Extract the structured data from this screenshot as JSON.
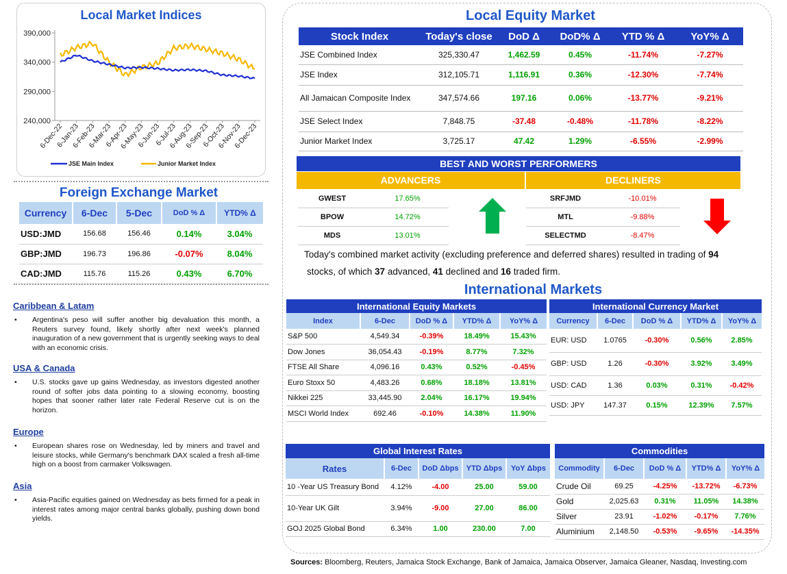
{
  "chart": {
    "title": "Local Market Indices",
    "legend": [
      "JSE Main Index",
      "Junior Market Index"
    ]
  },
  "chart_data": {
    "type": "line",
    "title": "Local Market Indices",
    "ylim": [
      240000,
      390000
    ],
    "yticks": [
      "390,000",
      "340,000",
      "290,000",
      "240,000"
    ],
    "ytick_values": [
      390000,
      340000,
      290000,
      240000
    ],
    "x": [
      "6-Dec-22",
      "6-Jan-23",
      "6-Feb-23",
      "6-Mar-23",
      "6-Apr-23",
      "6-May-23",
      "6-Jun-23",
      "6-Jul-23",
      "6-Aug-23",
      "6-Sep-23",
      "6-Oct-23",
      "6-Nov-23",
      "6-Dec-23"
    ],
    "colors": {
      "JSE Main Index": "#1f2fd0",
      "Junior Market Index": "#f5b800"
    },
    "series": [
      {
        "name": "JSE Main Index",
        "values": [
          340000,
          352000,
          342000,
          336000,
          330000,
          331000,
          329000,
          326000,
          327000,
          325000,
          318000,
          316000,
          312000
        ]
      },
      {
        "name": "Junior Market Index",
        "values": [
          352000,
          365000,
          372000,
          340000,
          318000,
          331000,
          338000,
          364000,
          368000,
          362000,
          355000,
          345000,
          328000
        ]
      }
    ]
  },
  "fx": {
    "title": "Foreign Exchange Market",
    "headers": [
      "Currency",
      "6-Dec",
      "5-Dec",
      "DoD % Δ",
      "YTD% Δ"
    ],
    "rows": [
      {
        "c": "USD:JMD",
        "a": "156.68",
        "b": "156.46",
        "d": "0.14%",
        "y": "3.04%"
      },
      {
        "c": "GBP:JMD",
        "a": "196.73",
        "b": "196.86",
        "d": "-0.07%",
        "y": "8.04%"
      },
      {
        "c": "CAD:JMD",
        "a": "115.76",
        "b": "115.26",
        "d": "0.43%",
        "y": "6.70%"
      }
    ]
  },
  "news": [
    {
      "head": "Caribbean & Latam",
      "body": "Argentina's peso will suffer another big devaluation this month, a Reuters survey found, likely shortly after next week's planned inauguration of a new government that is urgently seeking ways to deal with an economic crisis."
    },
    {
      "head": "USA & Canada",
      "body": "U.S. stocks gave up gains Wednesday, as investors digested another round of softer jobs data pointing to a slowing economy, boosting hopes that sooner rather later rate Federal Reserve cut is on the horizon."
    },
    {
      "head": "Europe",
      "body": "European shares rose on Wednesday, led by miners and travel and leisure stocks, while Germany's benchmark DAX scaled a fresh all-time high on a boost from carmaker Volkswagen."
    },
    {
      "head": "Asia",
      "body": "Asia-Pacific equities gained on Wednesday as bets firmed for a peak in interest rates among major central banks globally, pushing down bond yields."
    }
  ],
  "equity": {
    "title": "Local Equity Market",
    "headers": [
      "Stock Index",
      "Today's close",
      "DoD  Δ",
      "DoD% Δ",
      "YTD % Δ",
      "YoY% Δ"
    ],
    "rows": [
      {
        "n": "JSE Combined Index",
        "c": "325,330.47",
        "d": "1,462.59",
        "dp": "0.45%",
        "y": "-11.74%",
        "yy": "-7.27%"
      },
      {
        "n": "JSE Index",
        "c": "312,105.71",
        "d": "1,116.91",
        "dp": "0.36%",
        "y": "-12.30%",
        "yy": "-7.74%"
      },
      {
        "n": "All Jamaican Composite Index",
        "c": "347,574.66",
        "d": "197.16",
        "dp": "0.06%",
        "y": "-13.77%",
        "yy": "-9.21%"
      },
      {
        "n": "JSE Select Index",
        "c": "7,848.75",
        "d": "-37.48",
        "dp": "-0.48%",
        "y": "-11.78%",
        "yy": "-8.22%"
      },
      {
        "n": "Junior Market Index",
        "c": "3,725.17",
        "d": "47.42",
        "dp": "1.29%",
        "y": "-6.55%",
        "yy": "-2.99%"
      }
    ]
  },
  "performers": {
    "title": "BEST AND WORST PERFORMERS",
    "adv_label": "ADVANCERS",
    "dec_label": "DECLINERS",
    "advancers": [
      {
        "s": "GWEST",
        "v": "17.65%"
      },
      {
        "s": "BPOW",
        "v": "14.72%"
      },
      {
        "s": "MDS",
        "v": "13.01%"
      }
    ],
    "decliners": [
      {
        "s": "SRFJMD",
        "v": "-10.01%"
      },
      {
        "s": "MTL",
        "v": "-9.88%"
      },
      {
        "s": "SELECTMD",
        "v": "-8.47%"
      }
    ]
  },
  "summary": {
    "p1": "Today's combined market activity (excluding preference and deferred shares) resulted in trading of ",
    "n_total": "94",
    "p2": "stocks, of which ",
    "n_adv": "37",
    "p3": " advanced, ",
    "n_dec": "41",
    "p4": " declined and ",
    "n_firm": "16",
    "p5": " traded firm."
  },
  "intl": {
    "title": "International Markets",
    "equity_title": "International Equity Markets",
    "equity_headers": [
      "Index",
      "6-Dec",
      "DoD % Δ",
      "YTD% Δ",
      "YoY% Δ"
    ],
    "equity_rows": [
      {
        "n": "S&P 500",
        "v": "4,549.34",
        "d": "-0.39%",
        "y": "18.49%",
        "yy": "15.43%"
      },
      {
        "n": "Dow Jones",
        "v": "36,054.43",
        "d": "-0.19%",
        "y": "8.77%",
        "yy": "7.32%"
      },
      {
        "n": "FTSE All Share",
        "v": "4,096.16",
        "d": "0.43%",
        "y": "0.52%",
        "yy": "-0.45%"
      },
      {
        "n": "Euro Stoxx 50",
        "v": "4,483.26",
        "d": "0.68%",
        "y": "18.18%",
        "yy": "13.81%"
      },
      {
        "n": "Nikkei 225",
        "v": "33,445.90",
        "d": "2.04%",
        "y": "16.17%",
        "yy": "19.94%"
      },
      {
        "n": "MSCI World Index",
        "v": "692.46",
        "d": "-0.10%",
        "y": "14.38%",
        "yy": "11.90%"
      }
    ],
    "currency_title": "International Currency Market",
    "currency_headers": [
      "Currency",
      "6-Dec",
      "DoD % Δ",
      "YTD% Δ",
      "YoY% Δ"
    ],
    "currency_rows": [
      {
        "n": "EUR: USD",
        "v": "1.0765",
        "d": "-0.30%",
        "y": "0.56%",
        "yy": "2.85%"
      },
      {
        "n": "GBP: USD",
        "v": "1.26",
        "d": "-0.30%",
        "y": "3.92%",
        "yy": "3.49%"
      },
      {
        "n": "USD: CAD",
        "v": "1.36",
        "d": "0.03%",
        "y": "0.31%",
        "yy": "-0.42%"
      },
      {
        "n": "USD: JPY",
        "v": "147.37",
        "d": "0.15%",
        "y": "12.39%",
        "yy": "7.57%"
      }
    ],
    "rates_title": "Global Interest Rates",
    "rates_headers": [
      "Rates",
      "6-Dec",
      "DoD Δbps",
      "YTD Δbps",
      "YoY Δbps"
    ],
    "rates_rows": [
      {
        "n": "10 -Year US Treasury Bond",
        "v": "4.12%",
        "d": "-4.00",
        "y": "25.00",
        "yy": "59.00"
      },
      {
        "n": "10-Year UK Gilt",
        "v": "3.94%",
        "d": "-9.00",
        "y": "27.00",
        "yy": "86.00"
      },
      {
        "n": "GOJ 2025 Global Bond",
        "v": "6.34%",
        "d": "1.00",
        "y": "230.00",
        "yy": "7.00"
      }
    ],
    "comm_title": "Commodities",
    "comm_headers": [
      "Commodity",
      "6-Dec",
      "DoD % Δ",
      "YTD% Δ",
      "YoY% Δ"
    ],
    "comm_rows": [
      {
        "n": "Crude Oil",
        "v": "69.25",
        "d": "-4.25%",
        "y": "-13.72%",
        "yy": "-6.73%"
      },
      {
        "n": "Gold",
        "v": "2,025.63",
        "d": "0.31%",
        "y": "11.05%",
        "yy": "14.38%"
      },
      {
        "n": "Silver",
        "v": "23.91",
        "d": "-1.02%",
        "y": "-0.17%",
        "yy": "7.76%"
      },
      {
        "n": "Aluminium",
        "v": "2,148.50",
        "d": "-0.53%",
        "y": "-9.65%",
        "yy": "-14.35%"
      }
    ]
  },
  "sources": {
    "label": "Sources:",
    "text": " Bloomberg, Reuters, Jamaica Stock Exchange, Bank of Jamaica, Jamaica Observer, Jamaica Gleaner, Nasdaq, Investing.com"
  },
  "colors": {
    "header_blue": "#1f3fbf",
    "light_blue": "#bdd7f2",
    "gold": "#f5b800",
    "red": "#e00000",
    "green": "#00a000"
  }
}
